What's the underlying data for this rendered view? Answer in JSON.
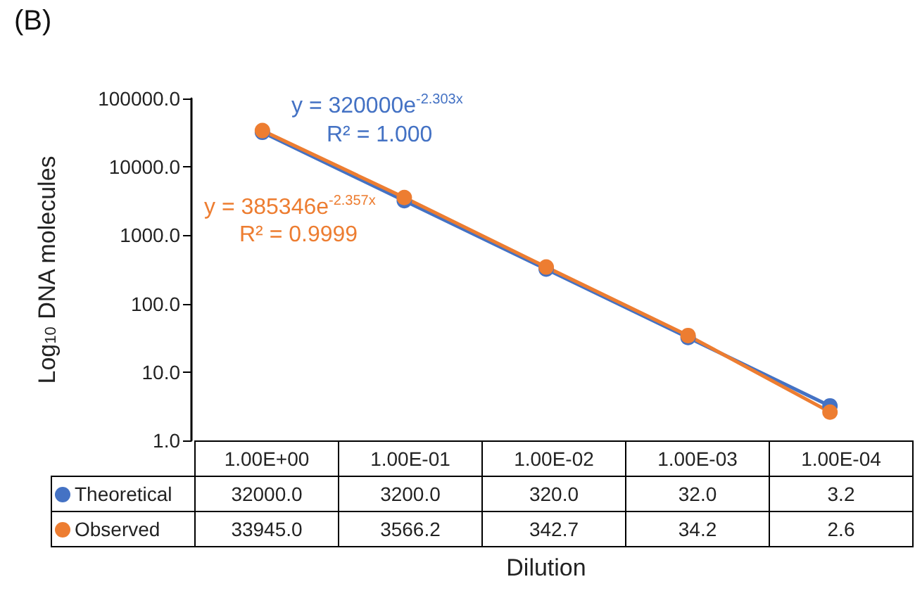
{
  "chart_data": {
    "type": "line",
    "title": "(B)",
    "xlabel": "Dilution",
    "ylabel": "Log$_{10}$ DNA molecules",
    "categories": [
      "1.00E+00",
      "1.00E-01",
      "1.00E-02",
      "1.00E-03",
      "1.00E-04"
    ],
    "series": [
      {
        "name": "Theoretical",
        "color": "#4472c4",
        "values": [
          32000.0,
          3200.0,
          320.0,
          32.0,
          3.2
        ],
        "value_labels": [
          "32000.0",
          "3200.0",
          "320.0",
          "32.0",
          "3.2"
        ]
      },
      {
        "name": "Observed",
        "color": "#ed7d31",
        "values": [
          33945.0,
          3566.2,
          342.7,
          34.2,
          2.6
        ],
        "value_labels": [
          "33945.0",
          "3566.2",
          "342.7",
          "34.2",
          "2.6"
        ]
      }
    ],
    "log": "y",
    "ylim": [
      1,
      100000
    ],
    "yticks": [
      {
        "value": 1,
        "label": "1.0"
      },
      {
        "value": 10,
        "label": "10.0"
      },
      {
        "value": 100,
        "label": "100.0"
      },
      {
        "value": 1000,
        "label": "1000.0"
      },
      {
        "value": 10000,
        "label": "10000.0"
      },
      {
        "value": 100000,
        "label": "100000.0"
      }
    ],
    "grid": false,
    "marker": "circle",
    "line_style": "solid",
    "legend": "bottom left",
    "annotations": [
      "y = 320000e$^{-2.303x}$",
      "R² = 1.000",
      "y = 385346e$^{-2.357x}$",
      "R² = 0.9999"
    ]
  }
}
